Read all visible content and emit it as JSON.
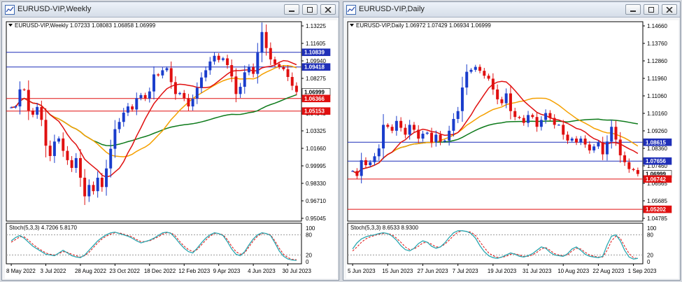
{
  "windows": [
    {
      "title": "EURUSD-VIP,Weekly",
      "header": "EURUSD-VIP,Weekly  1.07233 1.08083 1.06858 1.06999",
      "stoch_label": "Stoch(5,3,3) 4.7206 5.8170"
    },
    {
      "title": "EURUSD-VIP,Daily",
      "header": "EURUSD-VIP,Daily  1.06972 1.07429 1.06934 1.06999",
      "stoch_label": "Stoch(5,3,3) 8.6533 8.9300"
    }
  ],
  "colors": {
    "bull": "#1a3dcc",
    "bear": "#e01010",
    "ma_fast": "#e01010",
    "ma_mid": "#f5a000",
    "ma_slow": "#0d7a1a",
    "stoch_main": "#2aa7b0",
    "stoch_signal": "#e01010",
    "hline_blue": "#1f2fb8",
    "hline_red": "#e01010",
    "price_tag_bg": "#1f2fb8",
    "price_tag_red": "#e01010"
  },
  "chart_data": [
    {
      "type": "candlestick",
      "symbol": "EURUSD-VIP",
      "timeframe": "Weekly",
      "ohlc_last": {
        "open": 1.07233,
        "high": 1.08083,
        "low": 1.06858,
        "close": 1.06999
      },
      "y_ticks": [
        "1.13225",
        "1.11605",
        "1.09940",
        "1.08275",
        "1.06610",
        "1.04945",
        "1.03325",
        "1.01660",
        "0.99995",
        "0.98330",
        "0.96710",
        "0.95045"
      ],
      "ylim": [
        0.945,
        1.138
      ],
      "x_ticks": [
        {
          "label": "8 May 2022",
          "i": 0
        },
        {
          "label": "3 Jul 2022",
          "i": 8
        },
        {
          "label": "28 Aug 2022",
          "i": 16
        },
        {
          "label": "23 Oct 2022",
          "i": 24
        },
        {
          "label": "18 Dec 2022",
          "i": 32
        },
        {
          "label": "12 Feb 2023",
          "i": 40
        },
        {
          "label": "9 Apr 2023",
          "i": 48
        },
        {
          "label": "4 Jun 2023",
          "i": 56
        },
        {
          "label": "30 Jul 2023",
          "i": 64
        }
      ],
      "close": [
        1.055,
        1.056,
        1.0725,
        1.072,
        1.052,
        1.048,
        1.0555,
        1.043,
        1.018,
        1.008,
        1.022,
        1.025,
        1.013,
        1.004,
        0.9965,
        1.006,
        0.987,
        0.969,
        0.98,
        0.974,
        0.987,
        0.978,
        0.996,
        1.015,
        1.034,
        1.041,
        1.05,
        1.056,
        1.053,
        1.064,
        1.067,
        1.0635,
        1.0705,
        1.087,
        1.086,
        1.091,
        1.093,
        1.0795,
        1.068,
        1.069,
        1.064,
        1.056,
        1.0635,
        1.074,
        1.084,
        1.091,
        1.0995,
        1.105,
        1.101,
        1.1025,
        1.096,
        1.085,
        1.068,
        1.075,
        1.089,
        1.094,
        1.0875,
        1.108,
        1.128,
        1.1125,
        1.1015,
        1.097,
        1.094,
        1.092,
        1.0845,
        1.076,
        1.07
      ],
      "hlines": [
        {
          "value": 1.10839,
          "label": "1.10839",
          "color": "blue"
        },
        {
          "value": 1.09418,
          "label": "1.09418",
          "color": "blue"
        },
        {
          "value": 1.06999,
          "label": "1.06999",
          "color": "current"
        },
        {
          "value": 1.06366,
          "label": "1.06366",
          "color": "red"
        },
        {
          "value": 1.05153,
          "label": "1.05153",
          "color": "red"
        }
      ],
      "stochastic": {
        "main": [
          62,
          72,
          78,
          70,
          58,
          46,
          38,
          30,
          22,
          20,
          18,
          26,
          34,
          26,
          18,
          14,
          12,
          20,
          34,
          48,
          62,
          72,
          80,
          86,
          88,
          84,
          80,
          76,
          70,
          62,
          56,
          60,
          64,
          70,
          78,
          86,
          88,
          84,
          70,
          54,
          40,
          30,
          26,
          40,
          56,
          70,
          80,
          86,
          84,
          78,
          60,
          38,
          22,
          18,
          30,
          50,
          68,
          80,
          86,
          84,
          78,
          56,
          32,
          16,
          8,
          5,
          4
        ],
        "signal": [
          58,
          66,
          74,
          74,
          64,
          52,
          42,
          34,
          26,
          22,
          20,
          24,
          30,
          28,
          22,
          18,
          14,
          18,
          28,
          42,
          56,
          68,
          76,
          82,
          86,
          86,
          82,
          78,
          74,
          66,
          60,
          60,
          62,
          68,
          74,
          82,
          86,
          86,
          76,
          60,
          46,
          36,
          30,
          36,
          50,
          64,
          76,
          84,
          84,
          80,
          66,
          46,
          30,
          22,
          26,
          44,
          62,
          76,
          84,
          84,
          80,
          62,
          40,
          22,
          12,
          7,
          6
        ],
        "y_ticks": [
          "100",
          "80",
          "20",
          "0"
        ],
        "levels": [
          80,
          20
        ]
      },
      "ma": {
        "fast": 10,
        "mid": 20,
        "slow": 50
      }
    },
    {
      "type": "candlestick",
      "symbol": "EURUSD-VIP",
      "timeframe": "Daily",
      "ohlc_last": {
        "open": 1.06972,
        "high": 1.07429,
        "low": 1.06934,
        "close": 1.06999
      },
      "y_ticks": [
        "1.14660",
        "1.13760",
        "1.12860",
        "1.11960",
        "1.11060",
        "1.10160",
        "1.09260",
        "1.08360",
        "1.07460",
        "1.06565",
        "1.05685",
        "1.04785"
      ],
      "ylim": [
        1.046,
        1.1475
      ],
      "x_ticks": [
        {
          "label": "5 Jun 2023",
          "i": 0
        },
        {
          "label": "15 Jun 2023",
          "i": 8
        },
        {
          "label": "27 Jun 2023",
          "i": 16
        },
        {
          "label": "7 Jul 2023",
          "i": 24
        },
        {
          "label": "19 Jul 2023",
          "i": 32
        },
        {
          "label": "31 Jul 2023",
          "i": 40
        },
        {
          "label": "10 Aug 2023",
          "i": 48
        },
        {
          "label": "22 Aug 2023",
          "i": 56
        },
        {
          "label": "1 Sep 2023",
          "i": 64
        }
      ],
      "close": [
        1.0715,
        1.069,
        1.077,
        1.0745,
        1.076,
        1.079,
        1.083,
        1.095,
        1.094,
        1.092,
        1.097,
        1.0935,
        1.09,
        1.095,
        1.0925,
        1.088,
        1.0905,
        1.091,
        1.086,
        1.09,
        1.0865,
        1.087,
        1.092,
        1.098,
        1.102,
        1.114,
        1.122,
        1.123,
        1.1245,
        1.1225,
        1.12,
        1.1185,
        1.113,
        1.108,
        1.106,
        1.111,
        1.102,
        1.099,
        1.0985,
        1.096,
        1.1,
        1.099,
        1.094,
        1.0975,
        1.101,
        1.0985,
        1.095,
        1.095,
        1.09,
        1.087,
        1.088,
        1.086,
        1.088,
        1.085,
        1.082,
        1.084,
        1.086,
        1.08,
        1.0865,
        1.094,
        1.0875,
        1.0795,
        1.076,
        1.0725,
        1.072,
        1.07
      ],
      "hlines": [
        {
          "value": 1.08615,
          "label": "1.08615",
          "color": "blue"
        },
        {
          "value": 1.07656,
          "label": "1.07656",
          "color": "blue"
        },
        {
          "value": 1.06999,
          "label": "1.06999",
          "color": "current"
        },
        {
          "value": 1.06742,
          "label": "1.06742",
          "color": "red"
        },
        {
          "value": 1.05202,
          "label": "1.05202",
          "color": "red"
        }
      ],
      "stochastic": {
        "main": [
          38,
          56,
          68,
          74,
          78,
          80,
          84,
          86,
          84,
          76,
          64,
          48,
          36,
          32,
          40,
          54,
          62,
          58,
          46,
          40,
          44,
          56,
          72,
          86,
          92,
          92,
          90,
          84,
          70,
          48,
          30,
          18,
          12,
          10,
          14,
          20,
          26,
          22,
          16,
          14,
          18,
          24,
          34,
          44,
          40,
          28,
          20,
          18,
          16,
          24,
          38,
          44,
          34,
          22,
          16,
          14,
          12,
          16,
          50,
          76,
          80,
          62,
          34,
          14,
          8,
          10
        ],
        "signal": [
          32,
          44,
          58,
          68,
          74,
          78,
          82,
          84,
          84,
          80,
          70,
          58,
          44,
          36,
          38,
          46,
          56,
          58,
          52,
          44,
          44,
          52,
          64,
          78,
          88,
          92,
          90,
          88,
          78,
          60,
          42,
          26,
          18,
          13,
          13,
          16,
          22,
          24,
          20,
          16,
          16,
          20,
          28,
          38,
          42,
          34,
          24,
          20,
          18,
          20,
          32,
          40,
          38,
          28,
          20,
          16,
          14,
          14,
          34,
          62,
          76,
          70,
          46,
          24,
          12,
          9
        ],
        "y_ticks": [
          "100",
          "80",
          "20",
          "0"
        ],
        "levels": [
          80,
          20
        ]
      },
      "ma": {
        "fast": 10,
        "mid": 20,
        "slow": 50
      }
    }
  ]
}
